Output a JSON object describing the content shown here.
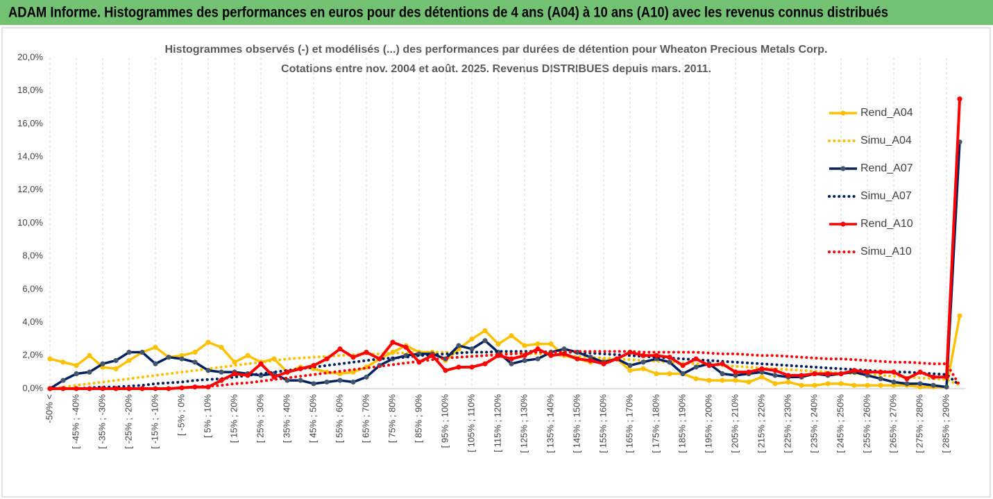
{
  "header": {
    "title": "ADAM Informe. Histogrammes des performances en euros pour des détentions de 4 ans (A04) à 10 ans (A10) avec les revenus connus distribués"
  },
  "chart_data": {
    "type": "line",
    "title": "Histogrammes observés (-) et modélisés (...) des performances par durées de détention pour Wheaton Precious Metals Corp.",
    "subtitle": "Cotations entre nov. 2004 et août. 2025. Revenus DISTRIBUES depuis mars. 2011.",
    "categories": [
      "-50% <",
      null,
      "[ -45% ; -40%",
      null,
      "[ -35% ; -30%",
      null,
      "[ -25% ; -20%",
      null,
      "[ -15% ; -10%",
      null,
      "[ -5% ; 0%",
      null,
      "[ 5% ; 10%",
      null,
      "[ 15% ; 20%",
      null,
      "[ 25% ; 30%",
      null,
      "[ 35% ; 40%",
      null,
      "[ 45% ; 50%",
      null,
      "[ 55% ; 60%",
      null,
      "[ 65% ; 70%",
      null,
      "[ 75% ; 80%",
      null,
      "[ 85% ; 90%",
      null,
      "[ 95% ; 100%",
      null,
      "[ 105% ; 110%",
      null,
      "[ 115% ; 120%",
      null,
      "[ 125% ; 130%",
      null,
      "[ 135% ; 140%",
      null,
      "[ 145% ; 150%",
      null,
      "[ 155% ; 160%",
      null,
      "[ 165% ; 170%",
      null,
      "[ 175% ; 180%",
      null,
      "[ 185% ; 190%",
      null,
      "[ 195% ; 200%",
      null,
      "[ 205% ; 210%",
      null,
      "[ 215% ; 220%",
      null,
      "[ 225% ; 230%",
      null,
      "[ 235% ; 240%",
      null,
      "[ 245% ; 250%",
      null,
      "[ 255% ; 260%",
      null,
      "[ 265% ; 270%",
      null,
      "[ 275% ; 280%",
      null,
      "[ 285% ; 290%",
      null
    ],
    "series": [
      {
        "name": "Rend_A04",
        "color": "#ffc000",
        "style": "solid",
        "marker": true,
        "values": [
          1.8,
          1.6,
          1.4,
          2.0,
          1.3,
          1.2,
          1.7,
          2.2,
          2.5,
          1.9,
          2.0,
          2.2,
          2.8,
          2.5,
          1.6,
          2.0,
          1.6,
          1.8,
          1.0,
          1.3,
          1.2,
          1.0,
          0.9,
          1.0,
          1.3,
          1.8,
          2.2,
          2.6,
          2.2,
          2.2,
          1.7,
          2.4,
          3.0,
          3.5,
          2.7,
          3.2,
          2.6,
          2.7,
          2.7,
          2.0,
          1.8,
          1.6,
          1.7,
          1.8,
          1.1,
          1.2,
          0.9,
          0.9,
          0.9,
          0.6,
          0.5,
          0.5,
          0.5,
          0.4,
          0.7,
          0.3,
          0.4,
          0.2,
          0.2,
          0.3,
          0.3,
          0.2,
          0.2,
          0.2,
          0.2,
          0.2,
          0.1,
          0.1,
          0.1,
          4.4
        ]
      },
      {
        "name": "Simu_A04",
        "color": "#ffc000",
        "style": "dotted",
        "marker": false,
        "values": [
          0.0,
          0.1,
          0.2,
          0.3,
          0.4,
          0.5,
          0.6,
          0.7,
          0.8,
          0.9,
          1.0,
          1.1,
          1.2,
          1.3,
          1.4,
          1.5,
          1.6,
          1.7,
          1.8,
          1.85,
          1.9,
          1.95,
          2.0,
          2.05,
          2.1,
          2.1,
          2.15,
          2.15,
          2.2,
          2.2,
          2.2,
          2.2,
          2.2,
          2.2,
          2.2,
          2.15,
          2.1,
          2.1,
          2.05,
          2.0,
          1.95,
          1.9,
          1.85,
          1.8,
          1.75,
          1.7,
          1.65,
          1.6,
          1.55,
          1.5,
          1.45,
          1.4,
          1.35,
          1.3,
          1.25,
          1.2,
          1.15,
          1.1,
          1.05,
          1.0,
          0.95,
          0.9,
          0.85,
          0.8,
          0.75,
          0.7,
          0.65,
          0.6,
          0.55,
          0.2
        ]
      },
      {
        "name": "Rend_A07",
        "color": "#002060",
        "marker_color": "#44546a",
        "style": "solid",
        "marker": true,
        "values": [
          0.0,
          0.5,
          0.9,
          1.0,
          1.5,
          1.7,
          2.2,
          2.2,
          1.5,
          1.9,
          1.8,
          1.6,
          1.1,
          1.0,
          1.0,
          0.9,
          0.8,
          0.9,
          0.5,
          0.5,
          0.3,
          0.4,
          0.5,
          0.4,
          0.7,
          1.4,
          1.8,
          2.0,
          2.1,
          2.1,
          1.8,
          2.6,
          2.4,
          2.9,
          2.2,
          1.5,
          1.7,
          1.8,
          2.2,
          2.4,
          2.2,
          1.9,
          1.6,
          1.8,
          1.4,
          1.6,
          1.8,
          1.6,
          0.9,
          1.3,
          1.5,
          0.9,
          0.8,
          0.9,
          1.0,
          0.8,
          0.7,
          0.7,
          0.9,
          0.8,
          0.9,
          1.0,
          0.8,
          0.6,
          0.4,
          0.3,
          0.3,
          0.2,
          0.1,
          14.9
        ]
      },
      {
        "name": "Simu_A07",
        "color": "#002060",
        "style": "dotted",
        "marker": false,
        "values": [
          0,
          0,
          0,
          0.05,
          0.1,
          0.1,
          0.15,
          0.2,
          0.3,
          0.35,
          0.4,
          0.5,
          0.55,
          0.6,
          0.7,
          0.8,
          0.9,
          1.0,
          1.1,
          1.2,
          1.3,
          1.4,
          1.5,
          1.6,
          1.7,
          1.8,
          1.85,
          1.9,
          2.0,
          2.05,
          2.1,
          2.15,
          2.2,
          2.2,
          2.25,
          2.25,
          2.25,
          2.25,
          2.2,
          2.2,
          2.2,
          2.15,
          2.1,
          2.05,
          2.0,
          1.95,
          1.9,
          1.85,
          1.8,
          1.75,
          1.7,
          1.65,
          1.6,
          1.55,
          1.5,
          1.45,
          1.4,
          1.35,
          1.3,
          1.25,
          1.2,
          1.15,
          1.1,
          1.05,
          1.0,
          1.0,
          0.95,
          0.9,
          0.85,
          0.2
        ]
      },
      {
        "name": "Rend_A10",
        "color": "#ff0000",
        "style": "solid",
        "marker": true,
        "values": [
          0,
          0,
          0,
          0,
          0,
          0,
          0,
          0,
          0,
          0,
          0.05,
          0.1,
          0.1,
          0.5,
          0.9,
          0.8,
          1.5,
          0.7,
          1.0,
          1.2,
          1.4,
          1.8,
          2.4,
          1.9,
          2.2,
          1.8,
          2.8,
          2.5,
          1.6,
          2.0,
          1.1,
          1.3,
          1.3,
          1.5,
          2.0,
          1.8,
          2.0,
          2.4,
          2.0,
          2.1,
          1.8,
          1.7,
          1.5,
          1.8,
          2.2,
          2.0,
          2.0,
          1.9,
          1.4,
          1.8,
          1.4,
          1.5,
          1.0,
          1.0,
          1.2,
          1.1,
          0.8,
          0.8,
          0.9,
          0.9,
          0.9,
          1.1,
          1.0,
          1.0,
          1.0,
          0.6,
          1.0,
          0.7,
          0.7,
          17.5
        ]
      },
      {
        "name": "Simu_A10",
        "color": "#ff0000",
        "style": "dotted",
        "marker": false,
        "values": [
          0,
          0,
          0,
          0,
          0,
          0,
          0,
          0,
          0,
          0,
          0.05,
          0.1,
          0.15,
          0.2,
          0.3,
          0.35,
          0.45,
          0.55,
          0.65,
          0.75,
          0.85,
          0.95,
          1.05,
          1.15,
          1.25,
          1.35,
          1.45,
          1.55,
          1.65,
          1.75,
          1.85,
          1.9,
          1.95,
          2.0,
          2.05,
          2.1,
          2.15,
          2.2,
          2.2,
          2.2,
          2.25,
          2.25,
          2.25,
          2.25,
          2.25,
          2.2,
          2.2,
          2.2,
          2.2,
          2.2,
          2.15,
          2.1,
          2.1,
          2.05,
          2.0,
          2.0,
          1.95,
          1.9,
          1.85,
          1.8,
          1.8,
          1.75,
          1.7,
          1.65,
          1.6,
          1.6,
          1.55,
          1.5,
          1.5,
          0.2
        ]
      }
    ],
    "ylim": [
      0,
      20
    ],
    "yticks": [
      {
        "value": 0,
        "label": "0,0%"
      },
      {
        "value": 2,
        "label": "2,0%"
      },
      {
        "value": 4,
        "label": "4,0%"
      },
      {
        "value": 6,
        "label": "6,0%"
      },
      {
        "value": 8,
        "label": "8,0%"
      },
      {
        "value": 10,
        "label": "10,0%"
      },
      {
        "value": 12,
        "label": "12,0%"
      },
      {
        "value": 14,
        "label": "14,0%"
      },
      {
        "value": 16,
        "label": "16,0%"
      },
      {
        "value": 18,
        "label": "18,0%"
      },
      {
        "value": 20,
        "label": "20,0%"
      }
    ],
    "grid": false,
    "xgrid": true,
    "legend": "right"
  }
}
